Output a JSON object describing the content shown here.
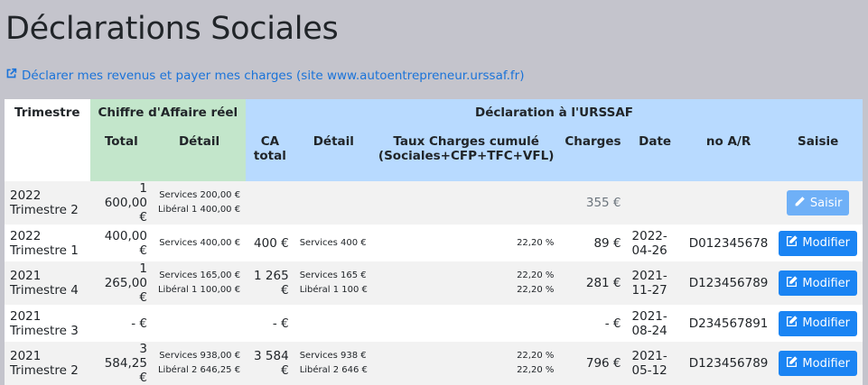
{
  "page": {
    "title": "Déclarations Sociales",
    "link_text": "Déclarer mes revenus et payer mes charges (site www.autoentrepreneur.urssaf.fr)"
  },
  "header": {
    "trimestre": "Trimestre",
    "ca_group": "Chiffre d'Affaire réel",
    "urssaf_group": "Déclaration à l'URSSAF",
    "total": "Total",
    "detail": "Détail",
    "ca_total": "CA total",
    "detail2": "Détail",
    "taux_line1": "Taux Charges cumulé",
    "taux_line2": "(Sociales+CFP+TFC+VFL)",
    "charges": "Charges",
    "date": "Date",
    "no_ar": "no A/R",
    "saisie": "Saisie"
  },
  "rows": [
    {
      "trimestre": "2022 Trimestre 2",
      "total": "1 600,00 €",
      "detail_l1": "Services 200,00 €",
      "detail_l2": "Libéral 1 400,00 €",
      "ca_total": "",
      "decl_l1": "",
      "decl_l2": "",
      "taux_l1": "",
      "taux_l2": "",
      "charges": "355 €",
      "date": "",
      "no_ar": "",
      "action": "Saisir"
    },
    {
      "trimestre": "2022 Trimestre 1",
      "total": "400,00 €",
      "detail_l1": "Services 400,00 €",
      "detail_l2": "",
      "ca_total": "400 €",
      "decl_l1": "Services 400 €",
      "decl_l2": "",
      "taux_l1": "22,20 %",
      "taux_l2": "",
      "charges": "89 €",
      "date": "2022-04-26",
      "no_ar": "D012345678",
      "action": "Modifier"
    },
    {
      "trimestre": "2021 Trimestre 4",
      "total": "1 265,00 €",
      "detail_l1": "Services 165,00 €",
      "detail_l2": "Libéral 1 100,00 €",
      "ca_total": "1 265 €",
      "decl_l1": "Services 165 €",
      "decl_l2": "Libéral 1 100 €",
      "taux_l1": "22,20 %",
      "taux_l2": "22,20 %",
      "charges": "281 €",
      "date": "2021-11-27",
      "no_ar": "D123456789",
      "action": "Modifier"
    },
    {
      "trimestre": "2021 Trimestre 3",
      "total": "- €",
      "detail_l1": "",
      "detail_l2": "",
      "ca_total": "- €",
      "decl_l1": "",
      "decl_l2": "",
      "taux_l1": "",
      "taux_l2": "",
      "charges": "- €",
      "date": "2021-08-24",
      "no_ar": "D234567891",
      "action": "Modifier"
    },
    {
      "trimestre": "2021 Trimestre 2",
      "total": "3 584,25 €",
      "detail_l1": "Services 938,00 €",
      "detail_l2": "Libéral 2 646,25 €",
      "ca_total": "3 584 €",
      "decl_l1": "Services 938 €",
      "decl_l2": "Libéral 2 646 €",
      "taux_l1": "22,20 %",
      "taux_l2": "22,20 %",
      "charges": "796 €",
      "date": "2021-05-12",
      "no_ar": "D123456789",
      "action": "Modifier"
    }
  ]
}
